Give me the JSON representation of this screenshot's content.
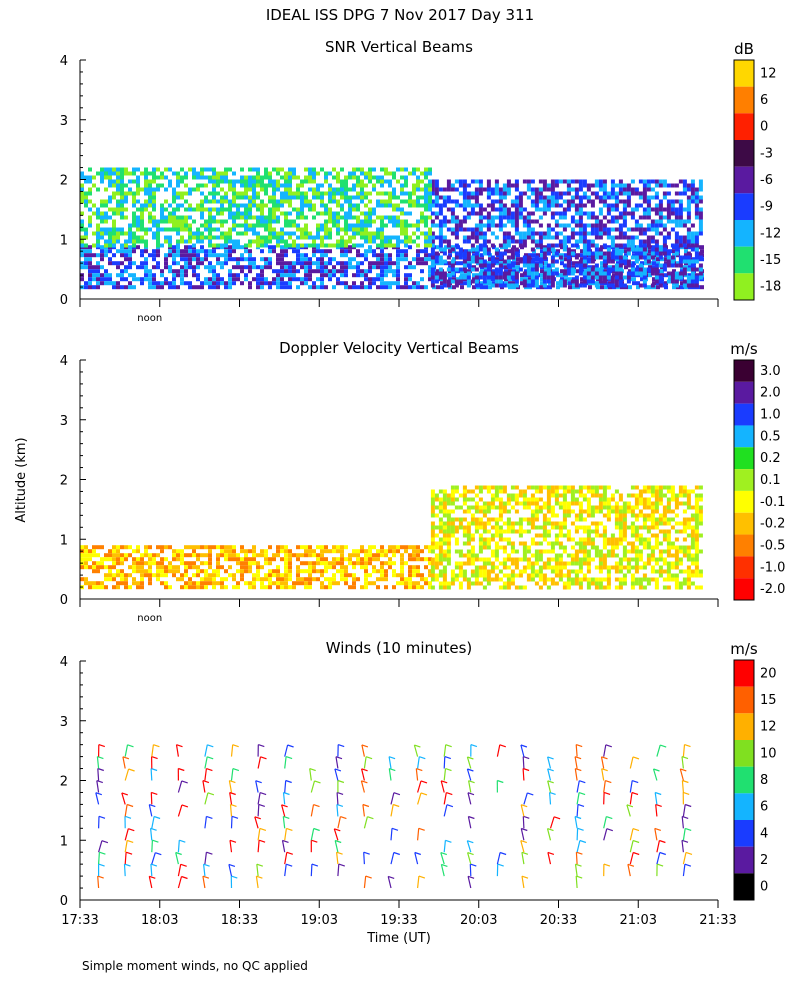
{
  "figure_title": "IDEAL ISS DPG   7 Nov 2017 Day 311",
  "shared": {
    "ylabel": "Altitude (km)",
    "xlabel": "Time (UT)",
    "noon_label": "noon",
    "footnote": "Simple moment winds, no QC applied",
    "x_tick_labels": [
      "17:33",
      "18:03",
      "18:33",
      "19:03",
      "19:33",
      "20:03",
      "20:33",
      "21:03",
      "21:33"
    ]
  },
  "chart_data": [
    {
      "type": "heatmap",
      "title": "SNR Vertical Beams",
      "ylim": [
        0,
        4
      ],
      "y_ticks": [
        0,
        1,
        2,
        3,
        4
      ],
      "xlim": [
        "17:33",
        "21:33"
      ],
      "colorbar": {
        "unit": "dB",
        "labels": [
          "12",
          "6",
          "0",
          "-3",
          "-6",
          "-9",
          "-12",
          "-15",
          "-18"
        ],
        "colors": [
          "#ffd700",
          "#ff7f00",
          "#ff2000",
          "#3d0a46",
          "#5a1aa0",
          "#1a3cff",
          "#14b4ff",
          "#20e070",
          "#90f020"
        ]
      },
      "features": [
        {
          "start": "17:33",
          "end": "21:27",
          "base_km": 0.2,
          "top_km": 0.9,
          "dominant": "-9"
        },
        {
          "start": "19:45",
          "end": "21:27",
          "base_km": 0.2,
          "top_km": 2.0,
          "dominant": "-9"
        },
        {
          "start": "17:33",
          "end": "19:45",
          "base_km": 0.9,
          "top_km": 2.2,
          "dominant": "-15"
        }
      ]
    },
    {
      "type": "heatmap",
      "title": "Doppler Velocity Vertical Beams",
      "ylim": [
        0,
        4
      ],
      "y_ticks": [
        0,
        1,
        2,
        3,
        4
      ],
      "xlim": [
        "17:33",
        "21:33"
      ],
      "colorbar": {
        "unit": "m/s",
        "labels": [
          "3.0",
          "2.0",
          "1.0",
          "0.5",
          "0.2",
          "0.1",
          "-0.1",
          "-0.2",
          "-0.5",
          "-1.0",
          "-2.0"
        ],
        "colors": [
          "#3a0032",
          "#5a1aa0",
          "#1a3cff",
          "#14b4ff",
          "#20e020",
          "#a0f020",
          "#ffff00",
          "#ffc000",
          "#ff8000",
          "#ff3000",
          "#ff0000"
        ]
      },
      "features": [
        {
          "start": "17:33",
          "end": "19:45",
          "base_km": 0.2,
          "top_km": 0.9,
          "dominant": "-0.2"
        },
        {
          "start": "19:45",
          "end": "21:27",
          "base_km": 0.2,
          "top_km": 1.9,
          "dominant": "-0.1"
        }
      ]
    },
    {
      "type": "scatter",
      "title": "Winds (10 minutes)",
      "ylim": [
        0,
        4
      ],
      "y_ticks": [
        0,
        1,
        2,
        3,
        4
      ],
      "xlim": [
        "17:33",
        "21:33"
      ],
      "colorbar": {
        "unit": "m/s",
        "labels": [
          "20",
          "15",
          "12",
          "10",
          "8",
          "6",
          "4",
          "2",
          "0"
        ],
        "colors": [
          "#ff0000",
          "#ff6000",
          "#ffb000",
          "#80e020",
          "#20e070",
          "#14b4ff",
          "#1a3cff",
          "#5a1aa0",
          "#000000"
        ]
      },
      "barb_times": [
        "17:40",
        "17:50",
        "18:00",
        "18:10",
        "18:20",
        "18:30",
        "18:40",
        "18:50",
        "19:00",
        "19:10",
        "19:20",
        "19:30",
        "19:40",
        "19:50",
        "20:00",
        "20:10",
        "20:20",
        "20:30",
        "20:40",
        "20:50",
        "21:00",
        "21:10",
        "21:20"
      ]
    }
  ]
}
